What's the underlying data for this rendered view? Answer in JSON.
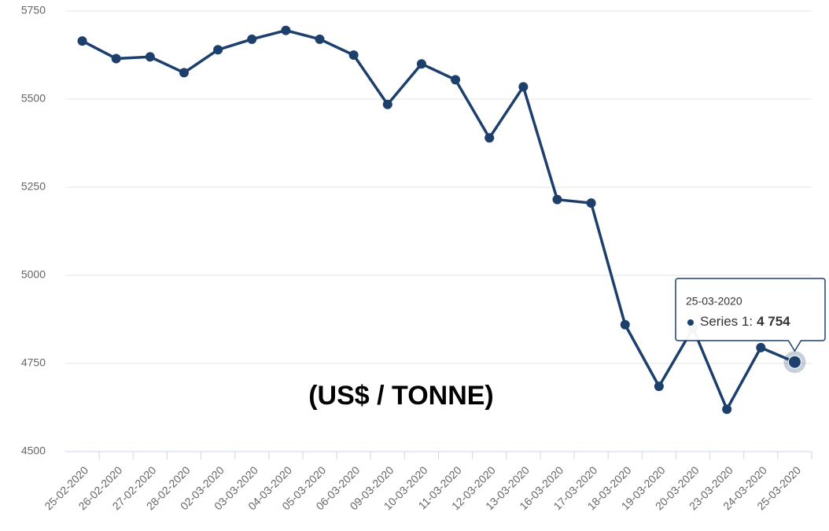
{
  "chart_data": {
    "type": "line",
    "categories": [
      "25-02-2020",
      "26-02-2020",
      "27-02-2020",
      "28-02-2020",
      "02-03-2020",
      "03-03-2020",
      "04-03-2020",
      "05-03-2020",
      "06-03-2020",
      "09-03-2020",
      "10-03-2020",
      "11-03-2020",
      "12-03-2020",
      "13-03-2020",
      "16-03-2020",
      "17-03-2020",
      "18-03-2020",
      "19-03-2020",
      "20-03-2020",
      "23-03-2020",
      "24-03-2020",
      "25-03-2020"
    ],
    "values": [
      5665,
      5615,
      5620,
      5575,
      5640,
      5670,
      5695,
      5670,
      5625,
      5485,
      5600,
      5555,
      5390,
      5535,
      5215,
      5205,
      4860,
      4685,
      4850,
      4620,
      4795,
      4754
    ],
    "color": "#1c3f6b",
    "ylim": [
      4500,
      5750
    ],
    "yticks": [
      4500,
      4750,
      5000,
      5250,
      5500,
      5750
    ],
    "grid": true,
    "annotation": "(US$ / TONNE)",
    "tooltip": {
      "date": "25-03-2020",
      "label": "Series 1:",
      "value": "4 754"
    }
  }
}
